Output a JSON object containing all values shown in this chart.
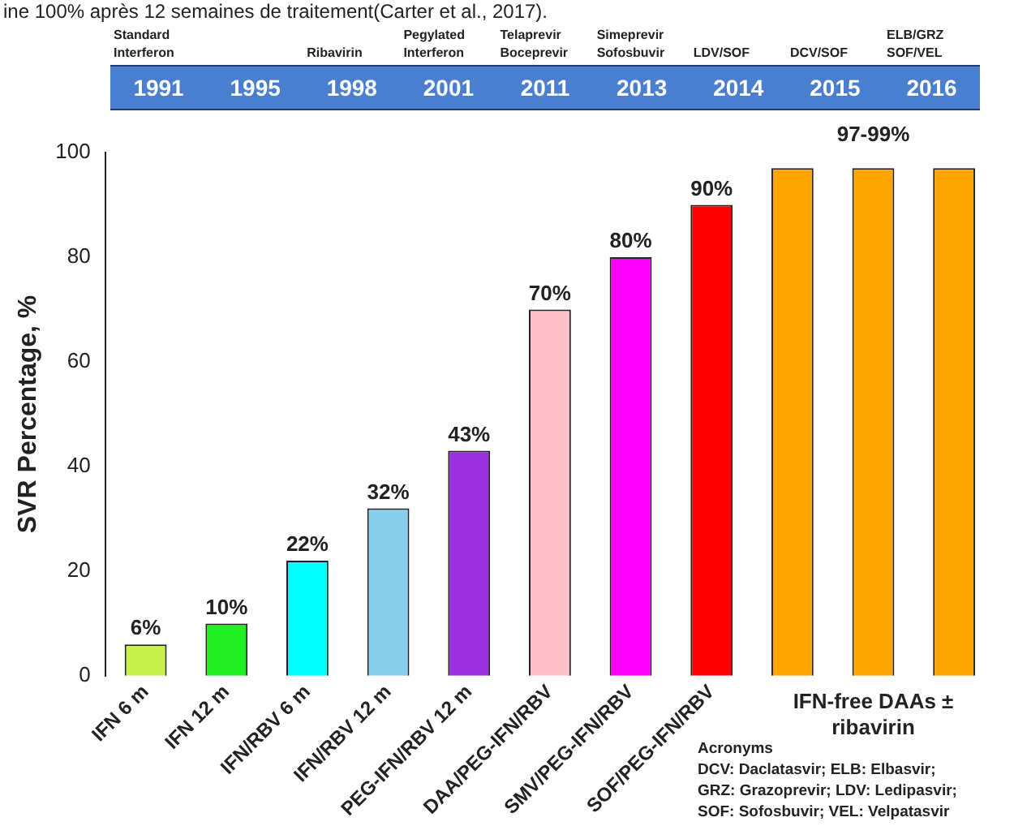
{
  "chart_data": {
    "type": "bar",
    "categories": [
      "IFN 6 m",
      "IFN 12 m",
      "IFN/RBV 6 m",
      "IFN/RBV 12 m",
      "PEG-IFN/RBV 12 m",
      "DAA/PEG-IFN/RBV",
      "SMV/PEG-IFN/RBV",
      "SOF/PEG-IFN/RBV",
      null,
      null,
      null
    ],
    "values": [
      6,
      10,
      22,
      32,
      43,
      70,
      80,
      90,
      97,
      97,
      97
    ],
    "colors": [
      "#c8f04a",
      "#22ee22",
      "#00ffff",
      "#87ceeb",
      "#9b30e0",
      "#ffc0cb",
      "#ff00ff",
      "#ff0000",
      "#ffa500",
      "#ffa500",
      "#ffa500"
    ],
    "value_labels": [
      "6%",
      "10%",
      "22%",
      "32%",
      "43%",
      "70%",
      "80%",
      "90%",
      null,
      "97-99%",
      null
    ],
    "ylabel": "SVR Percentage, %",
    "ylim": [
      0,
      100
    ],
    "yticks": [
      0,
      20,
      40,
      60,
      80,
      100
    ],
    "grid": false,
    "legend": false,
    "annotations": [
      "ine 100% après 12 semaines de traitement(Carter et al., 2017).",
      "Standard Interferon 1991",
      "1995",
      "Ribavirin 1998",
      "Pegylated Interferon 2001",
      "Telaprevir Boceprevir 2011",
      "Simeprevir Sofosbuvir 2013",
      "LDV/SOF 2014",
      "DCV/SOF 2015",
      "ELB/GRZ SOF/VEL 2016",
      "IFN-free DAAs ± ribavirin",
      "Acronyms",
      "DCV: Daclatasvir; ELB: Elbasvir;",
      "GRZ: Grazoprevir; LDV: Ledipasvir;",
      "SOF: Sofosbuvir; VEL: Velpatasvir"
    ]
  }
}
